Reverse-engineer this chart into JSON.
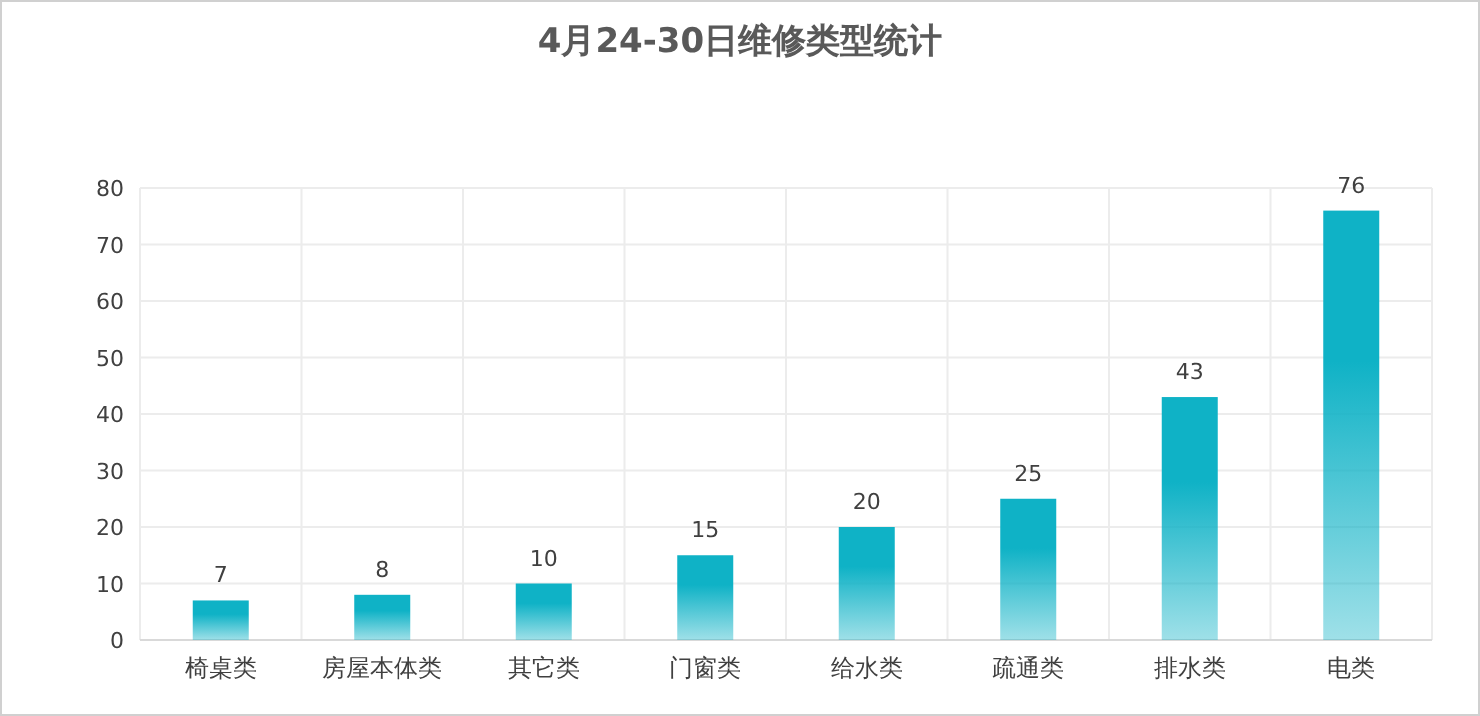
{
  "chart_data": {
    "type": "bar",
    "title": "4月24-30日维修类型统计",
    "categories": [
      "椅桌类",
      "房屋本体类",
      "其它类",
      "门窗类",
      "给水类",
      "疏通类",
      "排水类",
      "电类"
    ],
    "values": [
      7,
      8,
      10,
      15,
      20,
      25,
      43,
      76
    ],
    "color": "#0fb2c6",
    "ylim": [
      0,
      80
    ],
    "yticks": [
      0,
      10,
      20,
      30,
      40,
      50,
      60,
      70,
      80
    ],
    "grid": true,
    "data_labels": true
  }
}
